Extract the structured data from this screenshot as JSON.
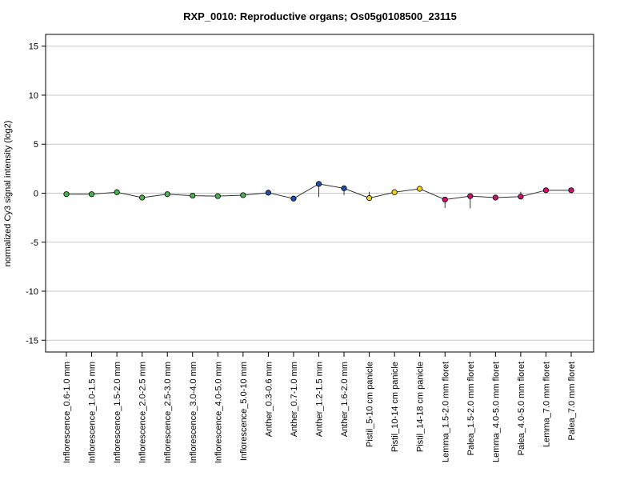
{
  "chart_data": {
    "type": "line",
    "title": "RXP_0010: Reproductive organs; Os05g0108500_23115",
    "xlabel": "",
    "ylabel": "normalized Cy3 signal intensity (log2)",
    "ylim": [
      -16.2,
      16.2
    ],
    "yticks": [
      15,
      10,
      5,
      0,
      -5,
      -10,
      -15
    ],
    "grid": true,
    "categories": [
      "Inflorescence_0.6-1.0 mm",
      "Inflorescence_1.0-1.5 mm",
      "Inflorescence_1.5-2.0 mm",
      "Inflorescence_2.0-2.5 mm",
      "Inflorescence_2.5-3.0 mm",
      "Inflorescence_3.0-4.0 mm",
      "Inflorescence_4.0-5.0 mm",
      "Inflorescence_5.0-10 mm",
      "Anther_0.3-0.6 mm",
      "Anther_0.7-1.0 mm",
      "Anther_1.2-1.5 mm",
      "Anther_1.6-2.0 mm",
      "Pistil_5-10 cm panicle",
      "Pistil_10-14 cm panicle",
      "Pistil_14-18 cm panicle",
      "Lemma_1.5-2.0 mm floret",
      "Palea_1.5-2.0 mm floret",
      "Lemma_4.0-5.0 mm floret",
      "Palea_4.0-5.0 mm floret",
      "Lemma_7.0 mm floret",
      "Palea_7.0 mm floret"
    ],
    "values": [
      -0.1,
      -0.1,
      0.1,
      -0.45,
      -0.1,
      -0.25,
      -0.3,
      -0.2,
      0.05,
      -0.55,
      0.95,
      0.5,
      -0.5,
      0.1,
      0.45,
      -0.65,
      -0.3,
      -0.45,
      -0.35,
      0.3,
      0.3
    ],
    "error_low": [
      -0.1,
      -0.1,
      0.1,
      -0.45,
      -0.1,
      -0.25,
      -0.3,
      -0.2,
      0.05,
      -0.55,
      -0.4,
      -0.2,
      -0.5,
      0.1,
      0.45,
      -1.5,
      -1.55,
      -0.45,
      -0.35,
      0.3,
      0.3
    ],
    "error_high": [
      -0.1,
      -0.1,
      0.1,
      -0.45,
      -0.1,
      -0.25,
      -0.3,
      -0.2,
      0.05,
      -0.55,
      0.95,
      0.5,
      0.15,
      0.1,
      0.45,
      -0.65,
      -0.3,
      -0.45,
      0.15,
      0.3,
      0.3
    ],
    "point_colors": [
      "#4caf50",
      "#4caf50",
      "#4caf50",
      "#4caf50",
      "#4caf50",
      "#4caf50",
      "#4caf50",
      "#4caf50",
      "#1f4fb0",
      "#1f4fb0",
      "#1f4fb0",
      "#1f4fb0",
      "#f2d21b",
      "#f2d21b",
      "#f2d21b",
      "#d0106e",
      "#d0106e",
      "#d0106e",
      "#d0106e",
      "#d0106e",
      "#d0106e"
    ],
    "line_color": "#333333",
    "grid_color": "#c8c8c8"
  }
}
